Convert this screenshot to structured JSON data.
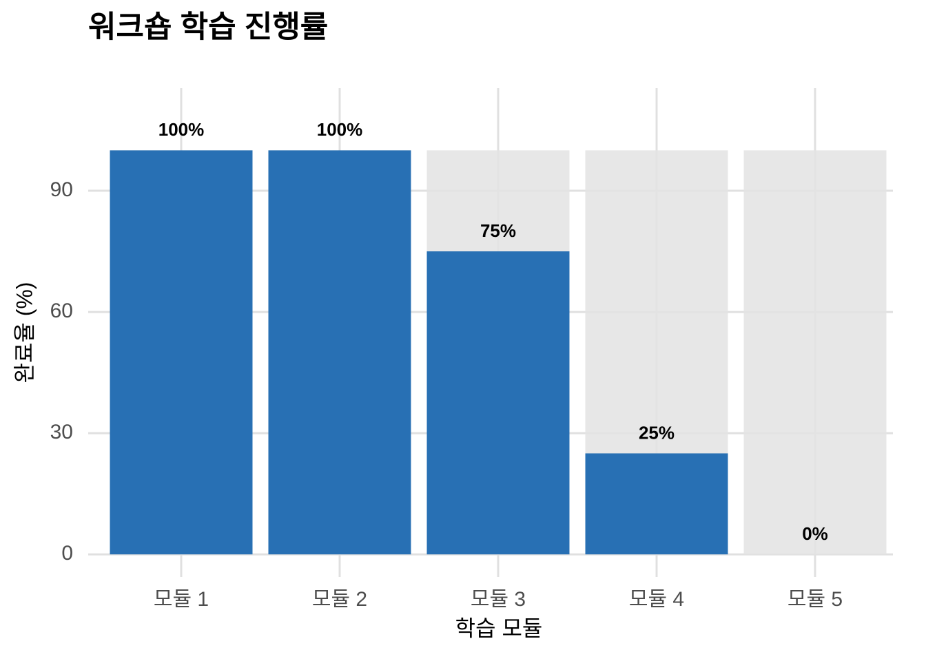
{
  "chart_data": {
    "type": "bar",
    "title": "워크숍 학습 진행률",
    "x_label": "학습 모듈",
    "y_label": "완료율 (%)",
    "categories": [
      "모듈 1",
      "모듈 2",
      "모듈 3",
      "모듈 4",
      "모듈 5"
    ],
    "series": [
      {
        "color": "#e3e3e3",
        "values": [
          100,
          100,
          100,
          100,
          100
        ]
      },
      {
        "color": "#2870b4",
        "values": [
          100,
          100,
          75,
          25,
          0
        ],
        "value_labels": [
          "100%",
          "100%",
          "75%",
          "25%",
          "0%"
        ]
      }
    ],
    "ylim": [
      -5.6,
      115.4
    ],
    "yticks": [
      0,
      30,
      60,
      90
    ],
    "grid": true
  }
}
